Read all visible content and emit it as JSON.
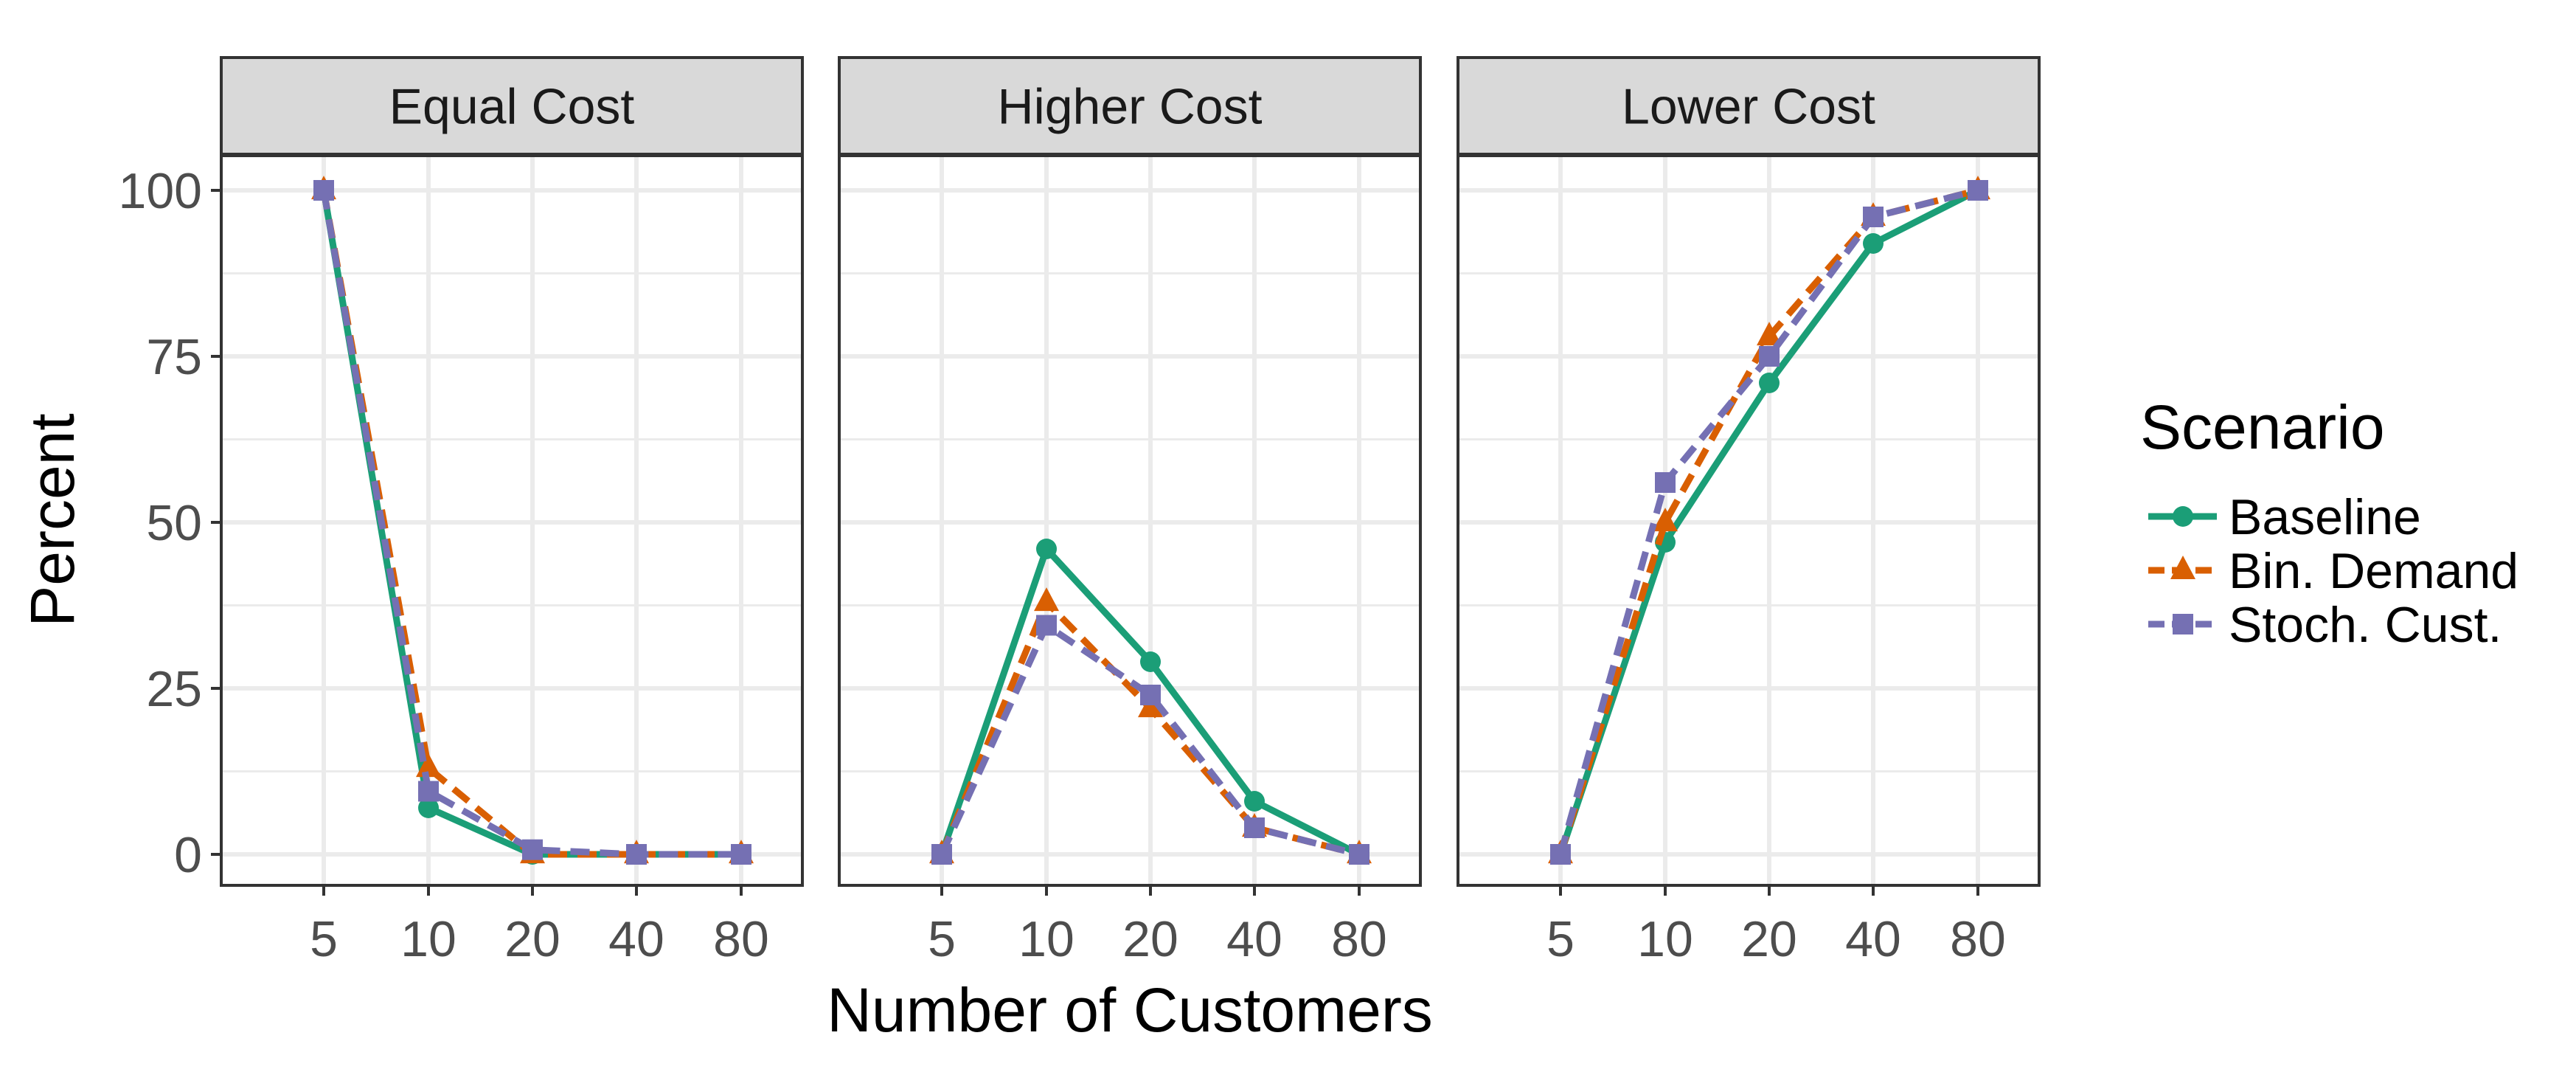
{
  "chart_data": {
    "type": "line",
    "facet_variable": "cost",
    "panels": [
      {
        "title": "Equal Cost",
        "series": [
          {
            "name": "Baseline",
            "values": [
              100,
              7,
              0,
              0,
              0
            ]
          },
          {
            "name": "Bin. Demand",
            "values": [
              100,
              13,
              0,
              0,
              0
            ]
          },
          {
            "name": "Stoch. Cust.",
            "values": [
              100,
              9.5,
              0.7,
              0,
              0
            ]
          }
        ]
      },
      {
        "title": "Higher Cost",
        "series": [
          {
            "name": "Baseline",
            "values": [
              0,
              46,
              29,
              8,
              0
            ]
          },
          {
            "name": "Bin. Demand",
            "values": [
              0,
              38,
              22,
              4,
              0
            ]
          },
          {
            "name": "Stoch. Cust.",
            "values": [
              0,
              34.5,
              24,
              4,
              0
            ]
          }
        ]
      },
      {
        "title": "Lower Cost",
        "series": [
          {
            "name": "Baseline",
            "values": [
              0,
              47,
              71,
              92,
              100
            ]
          },
          {
            "name": "Bin. Demand",
            "values": [
              0,
              50,
              78,
              96,
              100
            ]
          },
          {
            "name": "Stoch. Cust.",
            "values": [
              0,
              56,
              75,
              96,
              100
            ]
          }
        ]
      }
    ],
    "categories": [
      "5",
      "10",
      "20",
      "40",
      "80"
    ],
    "xlabel": "Number of Customers",
    "ylabel": "Percent",
    "ylim": [
      -5,
      100
    ],
    "yticks": [
      0,
      25,
      50,
      75,
      100
    ],
    "grid": true,
    "legend": {
      "title": "Scenario",
      "position": "right",
      "entries": [
        {
          "name": "Baseline",
          "color": "#1B9E77",
          "marker": "circle",
          "dash": "solid"
        },
        {
          "name": "Bin. Demand",
          "color": "#D95F02",
          "marker": "triangle",
          "dash": "dashed"
        },
        {
          "name": "Stoch. Cust.",
          "color": "#7570B3",
          "marker": "square",
          "dash": "dashed"
        }
      ]
    },
    "colors": {
      "strip_background": "#D9D9D9",
      "grid": "#EBEBEB",
      "border": "#333333"
    }
  }
}
